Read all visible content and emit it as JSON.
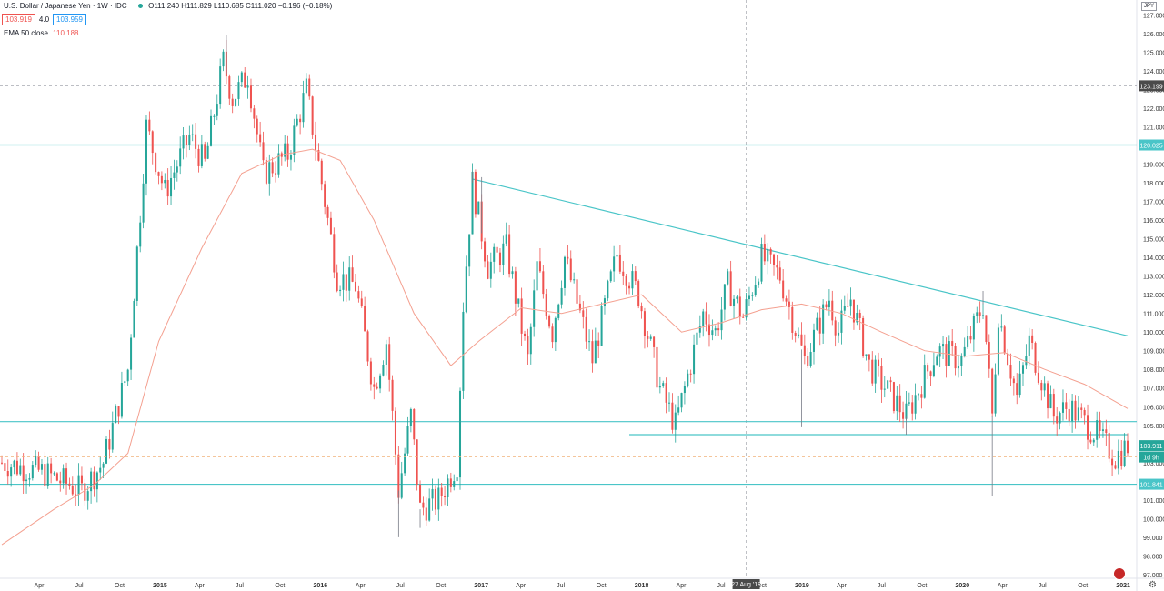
{
  "header": {
    "symbol": "U.S. Dollar / Japanese Yen · 1W · IDC",
    "ohlc": "O111.240  H111.829  L110.685  C111.020  −0.196 (−0.18%)",
    "bid": "103.919",
    "spread": "4.0",
    "ask": "103.959",
    "indicator": "EMA 50 close",
    "indicator_value": "110.188"
  },
  "currency": "JPY",
  "colors": {
    "up": "#26a69a",
    "down": "#ef5350",
    "ema": "#f4a090",
    "lines": "#4ac5c8"
  },
  "chart_data": {
    "type": "candlestick",
    "title": "U.S. Dollar / Japanese Yen · 1W · IDC",
    "y_ticks": [
      97.0,
      98.0,
      99.0,
      100.0,
      101.0,
      102.0,
      103.0,
      104.0,
      105.0,
      106.0,
      107.0,
      108.0,
      109.0,
      110.0,
      111.0,
      112.0,
      113.0,
      114.0,
      115.0,
      116.0,
      117.0,
      118.0,
      119.0,
      120.0,
      121.0,
      122.0,
      123.0,
      124.0,
      125.0,
      126.0,
      127.0
    ],
    "ylim": [
      96.8,
      127.8
    ],
    "x_labels": [
      "Apr",
      "Jul",
      "Oct",
      "2015",
      "Apr",
      "Jul",
      "Oct",
      "2016",
      "Apr",
      "Jul",
      "Oct",
      "2017",
      "Apr",
      "Jul",
      "Oct",
      "2018",
      "Apr",
      "Jul",
      "Oct",
      "2019",
      "Apr",
      "Jul",
      "Oct",
      "2020",
      "Apr",
      "Jul",
      "Oct",
      "2021"
    ],
    "x_label_dates": [
      "2014-04-01",
      "2014-07-01",
      "2014-10-01",
      "2015-01-01",
      "2015-04-01",
      "2015-07-01",
      "2015-10-01",
      "2016-01-01",
      "2016-04-01",
      "2016-07-01",
      "2016-10-01",
      "2017-01-01",
      "2017-04-01",
      "2017-07-01",
      "2017-10-01",
      "2018-01-01",
      "2018-04-01",
      "2018-07-01",
      "2018-10-01",
      "2019-01-01",
      "2019-04-01",
      "2019-07-01",
      "2019-10-01",
      "2020-01-01",
      "2020-04-01",
      "2020-07-01",
      "2020-10-01",
      "2021-01-01"
    ],
    "x_range": [
      "2014-01-06",
      "2021-01-11"
    ],
    "crosshair": {
      "date": "2018-08-27",
      "date_label": "27 Aug '18",
      "price": 123.199,
      "price_label": "123.199"
    },
    "price_labels": {
      "resistance": {
        "value": 120.025,
        "label": "120.025"
      },
      "last": {
        "value": 103.911,
        "label": "103.911"
      },
      "countdown": {
        "value": 103.3,
        "label": "1d 9h"
      },
      "support": {
        "value": 101.841,
        "label": "101.841"
      }
    },
    "horizontal_lines": [
      120.025,
      105.2,
      101.841
    ],
    "trend_lines": [
      {
        "from": [
          "2016-12-12",
          118.2
        ],
        "to": [
          "2021-01-11",
          109.8
        ]
      },
      {
        "from": [
          "2017-12-04",
          104.5
        ],
        "to": [
          "2021-01-11",
          104.5
        ]
      }
    ],
    "key_points": [
      [
        "2014-01-06",
        103.0
      ],
      [
        "2014-04-07",
        102.5
      ],
      [
        "2014-07-07",
        101.5
      ],
      [
        "2014-08-25",
        103.0
      ],
      [
        "2014-10-20",
        108.0
      ],
      [
        "2014-11-17",
        116.5
      ],
      [
        "2014-12-01",
        121.0
      ],
      [
        "2015-01-12",
        117.5
      ],
      [
        "2015-03-09",
        120.5
      ],
      [
        "2015-04-13",
        119.0
      ],
      [
        "2015-05-25",
        124.5
      ],
      [
        "2015-06-15",
        122.5
      ],
      [
        "2015-07-20",
        123.8
      ],
      [
        "2015-08-24",
        118.5
      ],
      [
        "2015-10-19",
        119.5
      ],
      [
        "2015-11-30",
        123.0
      ],
      [
        "2016-01-04",
        118.0
      ],
      [
        "2016-02-08",
        113.0
      ],
      [
        "2016-03-21",
        112.5
      ],
      [
        "2016-05-02",
        107.0
      ],
      [
        "2016-05-30",
        109.5
      ],
      [
        "2016-06-27",
        101.5
      ],
      [
        "2016-07-25",
        105.5
      ],
      [
        "2016-08-15",
        100.5
      ],
      [
        "2016-09-26",
        101.0
      ],
      [
        "2016-11-07",
        103.0
      ],
      [
        "2016-11-21",
        111.5
      ],
      [
        "2016-12-12",
        118.0
      ],
      [
        "2017-01-16",
        113.5
      ],
      [
        "2017-02-27",
        114.5
      ],
      [
        "2017-04-17",
        108.5
      ],
      [
        "2017-05-08",
        113.5
      ],
      [
        "2017-06-12",
        110.0
      ],
      [
        "2017-07-10",
        114.0
      ],
      [
        "2017-09-11",
        108.5
      ],
      [
        "2017-11-06",
        114.2
      ],
      [
        "2017-12-25",
        112.0
      ],
      [
        "2018-02-12",
        107.0
      ],
      [
        "2018-03-19",
        105.0
      ],
      [
        "2018-05-21",
        111.0
      ],
      [
        "2018-06-18",
        110.0
      ],
      [
        "2018-07-16",
        112.5
      ],
      [
        "2018-08-20",
        110.8
      ],
      [
        "2018-10-01",
        114.0
      ],
      [
        "2018-11-12",
        113.0
      ],
      [
        "2019-01-07",
        108.5
      ],
      [
        "2019-03-04",
        111.8
      ],
      [
        "2019-03-25",
        110.0
      ],
      [
        "2019-04-22",
        111.8
      ],
      [
        "2019-06-03",
        108.2
      ],
      [
        "2019-08-26",
        105.5
      ],
      [
        "2019-11-04",
        109.0
      ],
      [
        "2019-12-30",
        108.5
      ],
      [
        "2020-02-17",
        111.5
      ],
      [
        "2020-03-09",
        105.5
      ],
      [
        "2020-03-23",
        111.0
      ],
      [
        "2020-05-04",
        106.5
      ],
      [
        "2020-06-01",
        109.5
      ],
      [
        "2020-07-27",
        105.5
      ],
      [
        "2020-08-31",
        106.0
      ],
      [
        "2020-11-02",
        104.5
      ],
      [
        "2020-12-14",
        103.3
      ],
      [
        "2021-01-11",
        103.9
      ]
    ],
    "wicks": [
      [
        "2016-06-27",
        99.0
      ],
      [
        "2016-08-15",
        99.5
      ],
      [
        "2018-12-31",
        104.9
      ],
      [
        "2019-08-26",
        104.5
      ],
      [
        "2020-03-09",
        101.2
      ],
      [
        "2016-12-12",
        118.6
      ],
      [
        "2015-06-01",
        125.9
      ],
      [
        "2020-02-17",
        112.2
      ],
      [
        "2018-10-01",
        114.5
      ],
      [
        "2017-01-02",
        118.3
      ]
    ],
    "ema_points": [
      [
        "2014-01-06",
        98.6
      ],
      [
        "2014-05-05",
        100.5
      ],
      [
        "2014-08-04",
        101.8
      ],
      [
        "2014-10-20",
        103.5
      ],
      [
        "2014-12-29",
        109.5
      ],
      [
        "2015-04-06",
        114.5
      ],
      [
        "2015-07-06",
        118.5
      ],
      [
        "2015-10-05",
        119.5
      ],
      [
        "2015-12-14",
        119.8
      ],
      [
        "2016-02-15",
        119.2
      ],
      [
        "2016-05-02",
        116.0
      ],
      [
        "2016-08-01",
        111.0
      ],
      [
        "2016-10-24",
        108.2
      ],
      [
        "2016-12-26",
        109.5
      ],
      [
        "2017-04-03",
        111.3
      ],
      [
        "2017-07-03",
        111.0
      ],
      [
        "2017-10-02",
        111.5
      ],
      [
        "2018-01-01",
        112.0
      ],
      [
        "2018-04-02",
        110.0
      ],
      [
        "2018-07-02",
        110.5
      ],
      [
        "2018-10-01",
        111.2
      ],
      [
        "2018-12-31",
        111.5
      ],
      [
        "2019-04-01",
        111.0
      ],
      [
        "2019-07-01",
        110.0
      ],
      [
        "2019-10-07",
        109.0
      ],
      [
        "2020-01-06",
        108.7
      ],
      [
        "2020-04-06",
        108.9
      ],
      [
        "2020-07-06",
        108.0
      ],
      [
        "2020-10-05",
        107.2
      ],
      [
        "2021-01-11",
        105.9
      ]
    ]
  }
}
